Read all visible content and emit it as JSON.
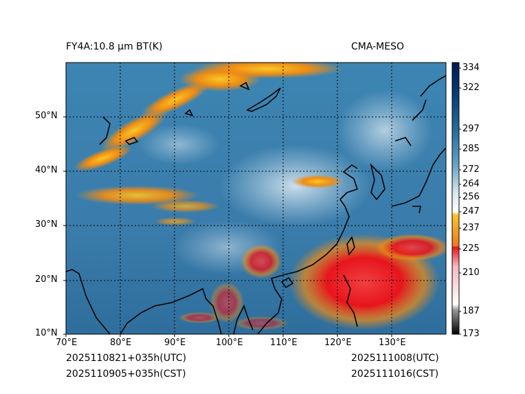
{
  "title_left": "FY4A:10.8 µm BT(K)",
  "title_right": "CMA-MESO",
  "time_left_utc": "2025110821+035h(UTC)",
  "time_left_cst": "2025110905+035h(CST)",
  "time_right_utc": "2025111008(UTC)",
  "time_right_cst": "2025111016(CST)",
  "lon_ticks": [
    "70°E",
    "80°E",
    "90°E",
    "100°E",
    "110°E",
    "120°E",
    "130°E"
  ],
  "lat_ticks": [
    "10°N",
    "20°N",
    "30°N",
    "40°N",
    "50°N"
  ],
  "colorbar": {
    "ticks": [
      "173",
      "187",
      "210",
      "225",
      "237",
      "247",
      "256",
      "264",
      "272",
      "285",
      "297",
      "322",
      "334"
    ]
  },
  "colors": {
    "cold_cloud_red": "#e8141c",
    "cold_cloud_orange": "#f08c14",
    "cold_cloud_yellow": "#f5c828",
    "clear_blue": "#3a7cab",
    "light_cloud": "#c8dcea"
  }
}
